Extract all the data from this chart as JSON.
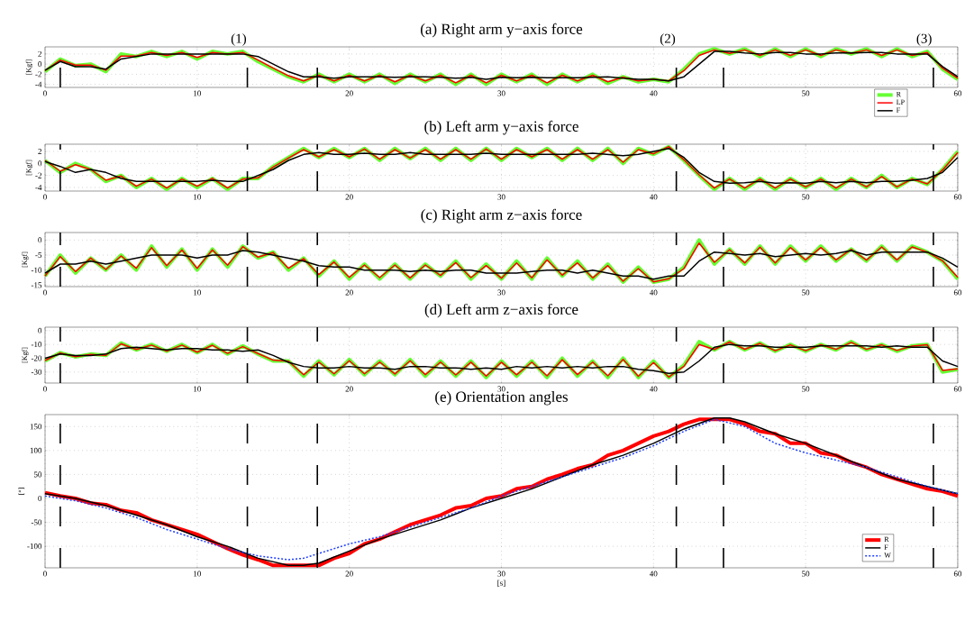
{
  "chart_data": [
    {
      "type": "line",
      "title": "(a) Right arm y−axis force",
      "ylabel": "[Kgf]",
      "x": [
        0,
        1,
        2,
        3,
        4,
        5,
        6,
        7,
        8,
        9,
        10,
        11,
        12,
        13,
        14,
        15,
        16,
        17,
        18,
        19,
        20,
        21,
        22,
        23,
        24,
        25,
        26,
        27,
        28,
        29,
        30,
        31,
        32,
        33,
        34,
        35,
        36,
        37,
        38,
        39,
        40,
        41,
        42,
        43,
        44,
        45,
        46,
        47,
        48,
        49,
        50,
        51,
        52,
        53,
        54,
        55,
        56,
        57,
        58,
        59,
        60
      ],
      "xlim": [
        0,
        60
      ],
      "xticks": [
        0,
        10,
        20,
        30,
        40,
        50,
        60
      ],
      "ylim": [
        -4.6,
        3.4
      ],
      "yticks": [
        -4,
        -2,
        0,
        2
      ],
      "grid": true,
      "legend": "bottom",
      "series": [
        {
          "name": "R",
          "color": "#66ff33",
          "values": [
            -1.5,
            1,
            -0.3,
            0,
            -1.5,
            2,
            1.5,
            2.5,
            1.5,
            2.5,
            1,
            2.5,
            2,
            2.5,
            0.5,
            -1,
            -2.5,
            -3.5,
            -2,
            -3.5,
            -2,
            -3.5,
            -2,
            -3.8,
            -2,
            -3.5,
            -2,
            -4,
            -2,
            -4,
            -2,
            -3.5,
            -2,
            -4,
            -2,
            -3.5,
            -2,
            -3.8,
            -2.5,
            -3.5,
            -3,
            -3.5,
            -1,
            2,
            3,
            2,
            3,
            1.5,
            3,
            1.5,
            3,
            1.5,
            3,
            2,
            3,
            1.5,
            3,
            1.5,
            2.5,
            -1,
            -3
          ]
        },
        {
          "name": "LP",
          "color": "#ff0000",
          "values": [
            -1.3,
            0.8,
            -0.2,
            -0.2,
            -1.2,
            1.6,
            1.6,
            2.3,
            1.7,
            2.3,
            1.3,
            2.3,
            2,
            2.3,
            0.8,
            -0.8,
            -2.3,
            -3.3,
            -2.2,
            -3.3,
            -2.2,
            -3.3,
            -2.2,
            -3.5,
            -2.2,
            -3.3,
            -2.2,
            -3.7,
            -2.2,
            -3.7,
            -2.2,
            -3.3,
            -2.2,
            -3.7,
            -2.2,
            -3.3,
            -2.2,
            -3.5,
            -2.6,
            -3.3,
            -3,
            -3.3,
            -1.3,
            1.7,
            2.8,
            2.1,
            2.8,
            1.7,
            2.8,
            1.7,
            2.8,
            1.7,
            2.8,
            2.1,
            2.8,
            1.7,
            2.8,
            1.7,
            2.3,
            -0.8,
            -2.8
          ]
        },
        {
          "name": "F",
          "color": "#000000",
          "values": [
            -1.2,
            0.5,
            -0.5,
            -0.5,
            -1,
            1,
            1.5,
            2,
            2,
            2,
            2,
            2,
            2,
            2,
            1.5,
            0,
            -1.5,
            -2.5,
            -2.5,
            -2.8,
            -2.5,
            -2.5,
            -2.5,
            -2.6,
            -2.5,
            -2.5,
            -2.6,
            -2.8,
            -2.6,
            -3,
            -2.6,
            -2.7,
            -2.6,
            -2.7,
            -2.7,
            -2.7,
            -2.6,
            -2.5,
            -2.8,
            -3,
            -3,
            -3.3,
            -2.5,
            0,
            2.5,
            2.5,
            2.2,
            2,
            2.3,
            2.3,
            2,
            2,
            2.2,
            2.2,
            2.3,
            2.3,
            2,
            2,
            2,
            -0.5,
            -2.5
          ]
        }
      ],
      "ref_lines": [
        {
          "axis": "x",
          "value": 1,
          "line_style": "dashed",
          "color": "#000000"
        },
        {
          "axis": "x",
          "value": 13.3,
          "line_style": "dashed",
          "color": "#000000"
        },
        {
          "axis": "x",
          "value": 17.9,
          "line_style": "dashed",
          "color": "#000000"
        },
        {
          "axis": "x",
          "value": 41.5,
          "line_style": "dashed",
          "color": "#000000"
        },
        {
          "axis": "x",
          "value": 44.6,
          "line_style": "dashed",
          "color": "#000000"
        },
        {
          "axis": "x",
          "value": 58.4,
          "line_style": "dashed",
          "color": "#000000"
        }
      ],
      "annotations": [
        "(1)",
        "(2)",
        "(3)"
      ]
    },
    {
      "type": "line",
      "title": "(b) Left arm y−axis force",
      "ylabel": "[Kgf]",
      "x": [
        0,
        1,
        2,
        3,
        4,
        5,
        6,
        7,
        8,
        9,
        10,
        11,
        12,
        13,
        14,
        15,
        16,
        17,
        18,
        19,
        20,
        21,
        22,
        23,
        24,
        25,
        26,
        27,
        28,
        29,
        30,
        31,
        32,
        33,
        34,
        35,
        36,
        37,
        38,
        39,
        40,
        41,
        42,
        43,
        44,
        45,
        46,
        47,
        48,
        49,
        50,
        51,
        52,
        53,
        54,
        55,
        56,
        57,
        58,
        59,
        60
      ],
      "xlim": [
        0,
        60
      ],
      "xticks": [
        0,
        10,
        20,
        30,
        40,
        50,
        60
      ],
      "ylim": [
        -4.6,
        3.2
      ],
      "yticks": [
        -4,
        -2,
        0,
        2
      ],
      "grid": true,
      "series": [
        {
          "color": "#66ff33",
          "values": [
            0.5,
            -1.5,
            0,
            -1,
            -3,
            -2,
            -4,
            -2.5,
            -4.3,
            -2.5,
            -4,
            -2.5,
            -4.3,
            -2.5,
            -2.5,
            -0.5,
            1,
            2.5,
            1,
            2.5,
            1,
            2.5,
            0.5,
            2.5,
            0.8,
            2.5,
            0.5,
            2.5,
            0.5,
            2.5,
            0.5,
            2.5,
            1,
            2.5,
            0.5,
            2.5,
            0.5,
            2.5,
            0,
            2.5,
            1.5,
            2.8,
            0.5,
            -2,
            -4.3,
            -2.5,
            -4.3,
            -2.5,
            -4.3,
            -2.5,
            -4,
            -2.5,
            -4.3,
            -2.5,
            -4,
            -2,
            -4,
            -2.5,
            -3.5,
            -1,
            2
          ]
        },
        {
          "color": "#ff0000",
          "values": [
            0.5,
            -1.3,
            -0.2,
            -1,
            -2.8,
            -2.1,
            -3.8,
            -2.6,
            -4.1,
            -2.6,
            -3.8,
            -2.5,
            -4.1,
            -2.6,
            -2.4,
            -0.6,
            0.9,
            2.3,
            1.1,
            2.3,
            1.1,
            2.4,
            0.7,
            2.3,
            0.9,
            2.3,
            0.7,
            2.3,
            0.7,
            2.4,
            0.7,
            2.3,
            1.1,
            2.3,
            0.7,
            2.3,
            0.7,
            2.3,
            0.2,
            2.3,
            1.6,
            2.8,
            0.6,
            -1.9,
            -4.1,
            -2.6,
            -4.1,
            -2.6,
            -4.1,
            -2.6,
            -3.9,
            -2.6,
            -4.1,
            -2.6,
            -3.9,
            -2.2,
            -3.9,
            -2.6,
            -3.4,
            -1.1,
            1.8
          ]
        },
        {
          "color": "#000000",
          "values": [
            0.3,
            -0.5,
            -1.5,
            -1,
            -1.5,
            -2.5,
            -3,
            -3,
            -3,
            -3,
            -3,
            -2.8,
            -3,
            -3,
            -2,
            -1,
            0.5,
            1.5,
            1.8,
            1.5,
            1.5,
            1.7,
            1.5,
            1.5,
            1.8,
            1.5,
            1.5,
            1.5,
            1.5,
            1.7,
            1.5,
            1.5,
            1.5,
            1.5,
            1.5,
            1.5,
            1.7,
            1.5,
            1.3,
            1.5,
            2,
            2.5,
            1,
            -1.5,
            -3,
            -3.3,
            -3.2,
            -3,
            -3.3,
            -3.2,
            -3.3,
            -3,
            -3.2,
            -3,
            -3.2,
            -3,
            -3,
            -2.8,
            -2.5,
            -1.5,
            1
          ]
        }
      ],
      "ref_lines": [
        {
          "axis": "x",
          "value": 1,
          "line_style": "dashed",
          "color": "#000000"
        },
        {
          "axis": "x",
          "value": 13.3,
          "line_style": "dashed",
          "color": "#000000"
        },
        {
          "axis": "x",
          "value": 17.9,
          "line_style": "dashed",
          "color": "#000000"
        },
        {
          "axis": "x",
          "value": 41.5,
          "line_style": "dashed",
          "color": "#000000"
        },
        {
          "axis": "x",
          "value": 44.6,
          "line_style": "dashed",
          "color": "#000000"
        },
        {
          "axis": "x",
          "value": 58.4,
          "line_style": "dashed",
          "color": "#000000"
        }
      ]
    },
    {
      "type": "line",
      "title": "(c) Right arm z−axis force",
      "ylabel": "[Kgf]",
      "x": [
        0,
        1,
        2,
        3,
        4,
        5,
        6,
        7,
        8,
        9,
        10,
        11,
        12,
        13,
        14,
        15,
        16,
        17,
        18,
        19,
        20,
        21,
        22,
        23,
        24,
        25,
        26,
        27,
        28,
        29,
        30,
        31,
        32,
        33,
        34,
        35,
        36,
        37,
        38,
        39,
        40,
        41,
        42,
        43,
        44,
        45,
        46,
        47,
        48,
        49,
        50,
        51,
        52,
        53,
        54,
        55,
        56,
        57,
        58,
        59,
        60
      ],
      "xlim": [
        0,
        60
      ],
      "xticks": [
        0,
        10,
        20,
        30,
        40,
        50,
        60
      ],
      "ylim": [
        -15.5,
        2.5
      ],
      "yticks": [
        -15,
        -10,
        -5,
        0
      ],
      "grid": true,
      "series": [
        {
          "color": "#66ff33",
          "values": [
            -12,
            -5,
            -11,
            -6,
            -10,
            -5,
            -10,
            -2,
            -9,
            -3,
            -10,
            -3,
            -9,
            -2,
            -6,
            -4,
            -10,
            -6,
            -12,
            -7,
            -13,
            -8,
            -13,
            -8,
            -13,
            -8,
            -12,
            -7,
            -13,
            -8,
            -13,
            -7,
            -13,
            -6,
            -12,
            -7,
            -13,
            -8,
            -14,
            -9,
            -14,
            -13,
            -9,
            0,
            -8,
            -3,
            -8,
            -2,
            -8,
            -2,
            -7,
            -2,
            -7,
            -3,
            -7,
            -2,
            -7,
            -2,
            -4,
            -7,
            -13
          ]
        },
        {
          "color": "#ff0000",
          "values": [
            -12,
            -5.5,
            -10.5,
            -6,
            -9.8,
            -5.3,
            -9.4,
            -2.5,
            -8.5,
            -3.3,
            -9.4,
            -3.3,
            -8.4,
            -2.2,
            -5.7,
            -4.2,
            -9.4,
            -6.2,
            -11.5,
            -7.3,
            -12.4,
            -8.3,
            -12.5,
            -8.3,
            -12.6,
            -8.3,
            -11.8,
            -7.5,
            -12.5,
            -8.5,
            -12.7,
            -7.6,
            -12.6,
            -6.6,
            -11.7,
            -7.6,
            -12.6,
            -8.5,
            -13.7,
            -9.5,
            -13.9,
            -12.9,
            -9.5,
            -1,
            -7.4,
            -3.2,
            -7.6,
            -2.4,
            -7.6,
            -2.5,
            -6.6,
            -2.5,
            -6.6,
            -3.1,
            -6.7,
            -2.3,
            -6.6,
            -2.3,
            -4,
            -6.9,
            -12.4
          ]
        },
        {
          "color": "#000000",
          "values": [
            -11,
            -8,
            -8,
            -7,
            -8,
            -7,
            -6,
            -5,
            -5,
            -5,
            -6,
            -5,
            -5,
            -3.5,
            -4,
            -5,
            -6,
            -7,
            -8.5,
            -9,
            -9,
            -10,
            -10,
            -10,
            -10.5,
            -10,
            -10.5,
            -10,
            -10,
            -11,
            -11,
            -11,
            -10.5,
            -10,
            -10,
            -11,
            -10,
            -11,
            -12,
            -12,
            -13,
            -12,
            -12,
            -7,
            -4,
            -4.5,
            -5,
            -4.5,
            -5.5,
            -5,
            -4.5,
            -5,
            -4.5,
            -3.5,
            -5,
            -4,
            -4,
            -4,
            -4,
            -6,
            -9
          ]
        }
      ],
      "ref_lines": [
        {
          "axis": "x",
          "value": 1,
          "line_style": "dashed",
          "color": "#000000"
        },
        {
          "axis": "x",
          "value": 13.3,
          "line_style": "dashed",
          "color": "#000000"
        },
        {
          "axis": "x",
          "value": 17.9,
          "line_style": "dashed",
          "color": "#000000"
        },
        {
          "axis": "x",
          "value": 41.5,
          "line_style": "dashed",
          "color": "#000000"
        },
        {
          "axis": "x",
          "value": 44.6,
          "line_style": "dashed",
          "color": "#000000"
        },
        {
          "axis": "x",
          "value": 58.4,
          "line_style": "dashed",
          "color": "#000000"
        }
      ]
    },
    {
      "type": "line",
      "title": "(d) Left arm z−axis force",
      "ylabel": "[Kgf]",
      "x": [
        0,
        1,
        2,
        3,
        4,
        5,
        6,
        7,
        8,
        9,
        10,
        11,
        12,
        13,
        14,
        15,
        16,
        17,
        18,
        19,
        20,
        21,
        22,
        23,
        24,
        25,
        26,
        27,
        28,
        29,
        30,
        31,
        32,
        33,
        34,
        35,
        36,
        37,
        38,
        39,
        40,
        41,
        42,
        43,
        44,
        45,
        46,
        47,
        48,
        49,
        50,
        51,
        52,
        53,
        54,
        55,
        56,
        57,
        58,
        59,
        60
      ],
      "xlim": [
        0,
        60
      ],
      "xticks": [
        0,
        10,
        20,
        30,
        40,
        50,
        60
      ],
      "ylim": [
        -38,
        2.5
      ],
      "yticks": [
        -30,
        -20,
        -10,
        0
      ],
      "grid": true,
      "series": [
        {
          "color": "#66ff33",
          "values": [
            -22,
            -16,
            -19,
            -17,
            -18,
            -9,
            -14,
            -10,
            -15,
            -10,
            -16,
            -10,
            -17,
            -11,
            -17,
            -22,
            -22,
            -33,
            -22,
            -32,
            -21,
            -32,
            -22,
            -32,
            -21,
            -33,
            -22,
            -33,
            -22,
            -34,
            -22,
            -33,
            -22,
            -34,
            -20,
            -33,
            -22,
            -34,
            -20,
            -34,
            -22,
            -34,
            -25,
            -8,
            -14,
            -8,
            -14,
            -9,
            -15,
            -10,
            -15,
            -10,
            -14,
            -8,
            -14,
            -10,
            -15,
            -11,
            -10,
            -30,
            -28
          ]
        },
        {
          "color": "#ff0000",
          "values": [
            -21.7,
            -16.2,
            -18.9,
            -17.2,
            -17.9,
            -9.6,
            -13.7,
            -10.5,
            -14.9,
            -10.5,
            -15.6,
            -10.6,
            -16.5,
            -11.6,
            -16.6,
            -21.4,
            -22.2,
            -32,
            -22.8,
            -31.3,
            -21.8,
            -31.3,
            -22.8,
            -31.4,
            -21.8,
            -31.9,
            -22.8,
            -32.1,
            -22.9,
            -32.9,
            -22.9,
            -32,
            -22.8,
            -32.8,
            -21.1,
            -31.9,
            -22.8,
            -32.8,
            -20.9,
            -33.1,
            -23.1,
            -33.6,
            -25.8,
            -10.1,
            -13.7,
            -8.3,
            -13.5,
            -9.3,
            -14.6,
            -10.3,
            -14.6,
            -10.2,
            -13.6,
            -8.5,
            -13.6,
            -10.3,
            -14.4,
            -11.2,
            -10.3,
            -28.8,
            -27.7
          ]
        },
        {
          "color": "#000000",
          "values": [
            -20,
            -17,
            -18,
            -18,
            -17,
            -13,
            -12,
            -13,
            -14,
            -13,
            -13,
            -14,
            -14,
            -15,
            -14,
            -18,
            -23,
            -26,
            -27,
            -27,
            -26,
            -27,
            -27,
            -28,
            -26,
            -26,
            -27,
            -27,
            -28,
            -27,
            -28,
            -26,
            -27,
            -26,
            -27,
            -26,
            -27,
            -26,
            -26,
            -28,
            -29,
            -31,
            -30,
            -22,
            -12,
            -10,
            -11,
            -11,
            -12,
            -12,
            -12,
            -11,
            -11,
            -11,
            -11,
            -12,
            -11,
            -12,
            -12,
            -22,
            -26
          ]
        }
      ],
      "ref_lines": [
        {
          "axis": "x",
          "value": 1,
          "line_style": "dashed",
          "color": "#000000"
        },
        {
          "axis": "x",
          "value": 13.3,
          "line_style": "dashed",
          "color": "#000000"
        },
        {
          "axis": "x",
          "value": 17.9,
          "line_style": "dashed",
          "color": "#000000"
        },
        {
          "axis": "x",
          "value": 41.5,
          "line_style": "dashed",
          "color": "#000000"
        },
        {
          "axis": "x",
          "value": 44.6,
          "line_style": "dashed",
          "color": "#000000"
        },
        {
          "axis": "x",
          "value": 58.4,
          "line_style": "dashed",
          "color": "#000000"
        }
      ]
    },
    {
      "type": "line",
      "title": "(e) Orientation angles",
      "ylabel": "[°]",
      "xlabel": "[s]",
      "x": [
        0,
        1,
        2,
        3,
        4,
        5,
        6,
        7,
        8,
        9,
        10,
        11,
        12,
        13,
        14,
        15,
        16,
        17,
        18,
        19,
        20,
        21,
        22,
        23,
        24,
        25,
        26,
        27,
        28,
        29,
        30,
        31,
        32,
        33,
        34,
        35,
        36,
        37,
        38,
        39,
        40,
        41,
        42,
        43,
        44,
        45,
        46,
        47,
        48,
        49,
        50,
        51,
        52,
        53,
        54,
        55,
        56,
        57,
        58,
        59,
        60
      ],
      "xlim": [
        0,
        60
      ],
      "xticks": [
        0,
        10,
        20,
        30,
        40,
        50,
        60
      ],
      "ylim": [
        -145,
        175
      ],
      "yticks": [
        -100,
        -50,
        0,
        50,
        100,
        150
      ],
      "grid": true,
      "legend": "bottom right",
      "series": [
        {
          "name": "R",
          "color": "#ff0000",
          "values": [
            12,
            5,
            0,
            -10,
            -13,
            -25,
            -30,
            -45,
            -55,
            -65,
            -75,
            -90,
            -105,
            -118,
            -128,
            -140,
            -140,
            -140,
            -140,
            -125,
            -115,
            -95,
            -85,
            -70,
            -55,
            -45,
            -35,
            -20,
            -15,
            0,
            5,
            20,
            25,
            40,
            50,
            62,
            70,
            90,
            100,
            115,
            130,
            140,
            155,
            165,
            165,
            165,
            155,
            140,
            135,
            115,
            115,
            95,
            90,
            75,
            65,
            50,
            40,
            30,
            20,
            15,
            5
          ]
        },
        {
          "name": "F",
          "color": "#000000",
          "x": [
            0,
            2,
            4,
            6,
            8,
            10,
            12,
            14,
            16,
            17,
            18,
            20,
            22,
            24,
            26,
            28,
            30,
            32,
            34,
            36,
            38,
            40,
            42,
            44,
            45,
            46,
            48,
            50,
            52,
            54,
            56,
            58,
            60
          ],
          "values": [
            10,
            0,
            -15,
            -35,
            -55,
            -80,
            -100,
            -125,
            -140,
            -140,
            -135,
            -110,
            -85,
            -65,
            -45,
            -20,
            0,
            20,
            45,
            70,
            90,
            115,
            145,
            168,
            168,
            160,
            135,
            115,
            90,
            65,
            40,
            25,
            10
          ]
        },
        {
          "name": "W",
          "color": "#1f3fff",
          "line_style": "dotted",
          "x": [
            0,
            2,
            4,
            6,
            8,
            10,
            12,
            14,
            16,
            17,
            18,
            20,
            22,
            24,
            26,
            28,
            30,
            32,
            34,
            36,
            38,
            40,
            42,
            44,
            46,
            48,
            50,
            52,
            54,
            56,
            58,
            60
          ],
          "values": [
            5,
            -5,
            -20,
            -40,
            -65,
            -85,
            -105,
            -120,
            -128,
            -125,
            -115,
            -95,
            -80,
            -60,
            -40,
            -20,
            5,
            25,
            45,
            65,
            85,
            110,
            140,
            165,
            150,
            115,
            95,
            80,
            65,
            45,
            25,
            10
          ]
        }
      ],
      "ref_lines": [
        {
          "axis": "x",
          "value": 1,
          "line_style": "dashed",
          "color": "#000000"
        },
        {
          "axis": "x",
          "value": 13.3,
          "line_style": "dashed",
          "color": "#000000"
        },
        {
          "axis": "x",
          "value": 17.9,
          "line_style": "dashed",
          "color": "#000000"
        },
        {
          "axis": "x",
          "value": 41.5,
          "line_style": "dashed",
          "color": "#000000"
        },
        {
          "axis": "x",
          "value": 44.6,
          "line_style": "dashed",
          "color": "#000000"
        },
        {
          "axis": "x",
          "value": 58.4,
          "line_style": "dashed",
          "color": "#000000"
        }
      ]
    }
  ]
}
